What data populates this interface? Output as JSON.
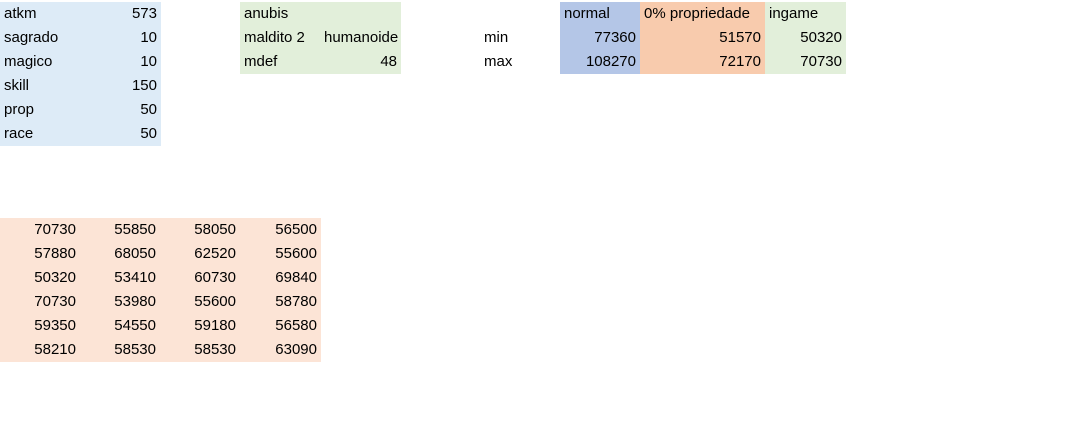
{
  "stats": {
    "rows": [
      {
        "label": "atkm",
        "value": "573"
      },
      {
        "label": "sagrado",
        "value": "10"
      },
      {
        "label": "magico",
        "value": "10"
      },
      {
        "label": "skill",
        "value": "150"
      },
      {
        "label": "prop",
        "value": "50"
      },
      {
        "label": "race",
        "value": "50"
      }
    ]
  },
  "monster": {
    "name": "anubis",
    "element": "maldito 2",
    "race": "humanoide",
    "mdef_label": "mdef",
    "mdef_value": "48"
  },
  "results": {
    "headers": {
      "normal": "normal",
      "zero_prop": "0% propriedade",
      "ingame": "ingame"
    },
    "min": {
      "label": "min",
      "normal": "77360",
      "zero_prop": "51570",
      "ingame": "50320"
    },
    "max": {
      "label": "max",
      "normal": "108270",
      "zero_prop": "72170",
      "ingame": "70730"
    }
  },
  "samples": {
    "rows": [
      [
        "70730",
        "55850",
        "58050",
        "56500"
      ],
      [
        "57880",
        "68050",
        "62520",
        "55600"
      ],
      [
        "50320",
        "53410",
        "60730",
        "69840"
      ],
      [
        "70730",
        "53980",
        "55600",
        "58780"
      ],
      [
        "59350",
        "54550",
        "59180",
        "56580"
      ],
      [
        "58210",
        "58530",
        "58530",
        "63090"
      ]
    ]
  }
}
